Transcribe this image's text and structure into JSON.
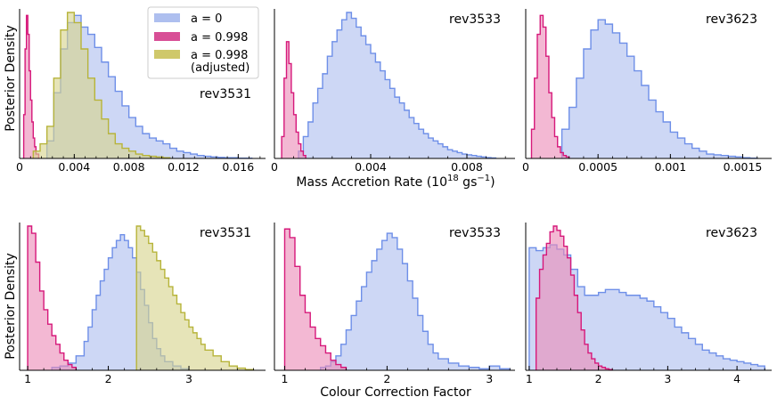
{
  "figure": {
    "ylabel": "Posterior Density",
    "row1_xlabel": "Mass Accretion Rate (10",
    "row1_xlabel_sup": "18",
    "row1_xlabel_mid": " gs",
    "row1_xlabel_sup2": "−1",
    "row1_xlabel_end": ")",
    "row2_xlabel": "Colour Correction Factor"
  },
  "colors": {
    "a0_fill": "#aebfef",
    "a0_line": "#6e8fe8",
    "a998_fill": "#ec8db8",
    "a998_line": "#d6187a",
    "adj_fill": "#d6d48d",
    "adj_line": "#b7b43a"
  },
  "legend": [
    {
      "label": "a = 0",
      "color": "#aebfef"
    },
    {
      "label": "a = 0.998",
      "color": "#d84f96"
    },
    {
      "label": "a = 0.998",
      "label2": "(adjusted)",
      "color": "#cfc86a"
    }
  ],
  "chart_data": [
    {
      "type": "histogram",
      "title": "rev3531",
      "row": 1,
      "col": 1,
      "xlim": [
        0,
        0.018
      ],
      "xticks": [
        0,
        0.004,
        0.008,
        0.012,
        0.016
      ],
      "xtick_labels": [
        "0",
        "0.004",
        "0.008",
        "0.012",
        "0.016"
      ],
      "series": [
        {
          "name": "a = 0",
          "edges": [
            0.002,
            0.0025,
            0.003,
            0.0035,
            0.004,
            0.0045,
            0.005,
            0.0055,
            0.006,
            0.0065,
            0.007,
            0.0075,
            0.008,
            0.0085,
            0.009,
            0.0095,
            0.01,
            0.0105,
            0.011,
            0.0115,
            0.012,
            0.0125,
            0.013,
            0.0135,
            0.014,
            0.0145,
            0.015,
            0.016,
            0.017
          ],
          "counts": [
            0.12,
            0.45,
            0.75,
            0.93,
            0.98,
            0.9,
            0.85,
            0.76,
            0.66,
            0.56,
            0.46,
            0.36,
            0.28,
            0.22,
            0.17,
            0.14,
            0.12,
            0.1,
            0.07,
            0.05,
            0.04,
            0.03,
            0.02,
            0.015,
            0.01,
            0.007,
            0.005,
            0.002
          ]
        },
        {
          "name": "a = 0.998",
          "edges": [
            0.0003,
            0.0004,
            0.0005,
            0.0006,
            0.0007,
            0.0008,
            0.0009,
            0.001,
            0.0011,
            0.0012,
            0.0014
          ],
          "counts": [
            0.3,
            0.75,
            0.98,
            0.85,
            0.6,
            0.4,
            0.25,
            0.14,
            0.08,
            0.03
          ]
        },
        {
          "name": "a = 0.998 (adjusted)",
          "edges": [
            0.001,
            0.0015,
            0.002,
            0.0025,
            0.003,
            0.0035,
            0.004,
            0.0045,
            0.005,
            0.0055,
            0.006,
            0.0065,
            0.007,
            0.0075,
            0.008,
            0.0085,
            0.009,
            0.0095,
            0.01,
            0.0105,
            0.011
          ],
          "counts": [
            0.05,
            0.1,
            0.22,
            0.55,
            0.88,
            1.0,
            0.93,
            0.75,
            0.55,
            0.4,
            0.27,
            0.17,
            0.1,
            0.07,
            0.05,
            0.03,
            0.02,
            0.015,
            0.01,
            0.005
          ]
        }
      ]
    },
    {
      "type": "histogram",
      "title": "rev3533",
      "row": 1,
      "col": 2,
      "xlim": [
        0,
        0.01
      ],
      "xticks": [
        0,
        0.004,
        0.008
      ],
      "xtick_labels": [
        "0",
        "0.004",
        "0.008"
      ],
      "series": [
        {
          "name": "a = 0",
          "edges": [
            0.001,
            0.0012,
            0.0014,
            0.0016,
            0.0018,
            0.002,
            0.0022,
            0.0024,
            0.0026,
            0.0028,
            0.003,
            0.0032,
            0.0034,
            0.0036,
            0.0038,
            0.004,
            0.0042,
            0.0044,
            0.0046,
            0.0048,
            0.005,
            0.0052,
            0.0054,
            0.0056,
            0.0058,
            0.006,
            0.0062,
            0.0064,
            0.0066,
            0.0068,
            0.007,
            0.0072,
            0.0074,
            0.0076,
            0.0078,
            0.008,
            0.0082,
            0.0084,
            0.0086,
            0.0088,
            0.009,
            0.0092
          ],
          "counts": [
            0.05,
            0.15,
            0.25,
            0.38,
            0.48,
            0.58,
            0.7,
            0.8,
            0.88,
            0.95,
            1.0,
            0.96,
            0.9,
            0.84,
            0.78,
            0.72,
            0.66,
            0.6,
            0.54,
            0.48,
            0.42,
            0.38,
            0.33,
            0.28,
            0.24,
            0.2,
            0.17,
            0.14,
            0.12,
            0.1,
            0.08,
            0.06,
            0.05,
            0.04,
            0.03,
            0.025,
            0.02,
            0.015,
            0.01,
            0.006,
            0.003
          ]
        },
        {
          "name": "a = 0.998",
          "edges": [
            0.0003,
            0.0004,
            0.0005,
            0.0006,
            0.0007,
            0.0008,
            0.0009,
            0.001,
            0.0011,
            0.0012,
            0.0013
          ],
          "counts": [
            0.15,
            0.55,
            0.8,
            0.65,
            0.45,
            0.3,
            0.18,
            0.1,
            0.05,
            0.02
          ]
        }
      ]
    },
    {
      "type": "histogram",
      "title": "rev3623",
      "row": 1,
      "col": 3,
      "xlim": [
        0,
        0.0017
      ],
      "xticks": [
        0,
        0.0005,
        0.001,
        0.0015
      ],
      "xtick_labels": [
        "0",
        "0.0005",
        "0.001",
        "0.0015"
      ],
      "series": [
        {
          "name": "a = 0",
          "edges": [
            0.00025,
            0.0003,
            0.00035,
            0.0004,
            0.00045,
            0.0005,
            0.00055,
            0.0006,
            0.00065,
            0.0007,
            0.00075,
            0.0008,
            0.00085,
            0.0009,
            0.00095,
            0.001,
            0.00105,
            0.0011,
            0.00115,
            0.0012,
            0.00125,
            0.0013,
            0.00135,
            0.0014,
            0.00145,
            0.0015,
            0.00155,
            0.0016
          ],
          "counts": [
            0.2,
            0.35,
            0.55,
            0.75,
            0.88,
            0.95,
            0.92,
            0.86,
            0.79,
            0.7,
            0.6,
            0.5,
            0.4,
            0.32,
            0.25,
            0.18,
            0.14,
            0.1,
            0.07,
            0.05,
            0.03,
            0.025,
            0.02,
            0.015,
            0.01,
            0.005,
            0.002
          ]
        },
        {
          "name": "a = 0.998",
          "edges": [
            4e-05,
            6e-05,
            8e-05,
            0.0001,
            0.00012,
            0.00014,
            0.00016,
            0.00018,
            0.0002,
            0.00022,
            0.00024,
            0.00026,
            0.00028,
            0.0003
          ],
          "counts": [
            0.2,
            0.55,
            0.85,
            0.98,
            0.9,
            0.7,
            0.45,
            0.28,
            0.15,
            0.08,
            0.04,
            0.02,
            0.01
          ]
        }
      ]
    },
    {
      "type": "histogram",
      "title": "rev3531",
      "row": 2,
      "col": 1,
      "xlim": [
        0.9,
        3.95
      ],
      "xticks": [
        1,
        2,
        3
      ],
      "xtick_labels": [
        "1",
        "2",
        "3"
      ],
      "series": [
        {
          "name": "a = 0",
          "edges": [
            1.3,
            1.4,
            1.5,
            1.6,
            1.7,
            1.75,
            1.8,
            1.85,
            1.9,
            1.95,
            2.0,
            2.05,
            2.1,
            2.15,
            2.2,
            2.25,
            2.3,
            2.35,
            2.4,
            2.45,
            2.5,
            2.55,
            2.6,
            2.65,
            2.7,
            2.8,
            2.9,
            3.0
          ],
          "counts": [
            0.02,
            0.03,
            0.05,
            0.1,
            0.2,
            0.3,
            0.42,
            0.52,
            0.62,
            0.7,
            0.78,
            0.85,
            0.9,
            0.94,
            0.9,
            0.85,
            0.78,
            0.68,
            0.56,
            0.45,
            0.33,
            0.22,
            0.15,
            0.1,
            0.06,
            0.03,
            0.01
          ]
        },
        {
          "name": "a = 0.998",
          "edges": [
            1.0,
            1.05,
            1.1,
            1.15,
            1.2,
            1.25,
            1.3,
            1.35,
            1.4,
            1.45,
            1.5,
            1.55,
            1.6
          ],
          "counts": [
            1.0,
            0.95,
            0.75,
            0.55,
            0.42,
            0.32,
            0.24,
            0.18,
            0.12,
            0.07,
            0.04,
            0.02
          ]
        },
        {
          "name": "a = 0.998 (adjusted)",
          "edges": [
            2.35,
            2.4,
            2.45,
            2.5,
            2.55,
            2.6,
            2.65,
            2.7,
            2.75,
            2.8,
            2.85,
            2.9,
            2.95,
            3.0,
            3.05,
            3.1,
            3.15,
            3.2,
            3.3,
            3.4,
            3.5,
            3.6,
            3.7,
            3.8
          ],
          "counts": [
            1.0,
            0.97,
            0.93,
            0.88,
            0.82,
            0.76,
            0.7,
            0.64,
            0.58,
            0.52,
            0.46,
            0.4,
            0.35,
            0.3,
            0.26,
            0.22,
            0.18,
            0.14,
            0.1,
            0.06,
            0.03,
            0.015,
            0.005
          ]
        }
      ]
    },
    {
      "type": "histogram",
      "title": "rev3533",
      "row": 2,
      "col": 2,
      "xlim": [
        0.9,
        3.25
      ],
      "xticks": [
        1,
        2,
        3
      ],
      "xtick_labels": [
        "1",
        "2",
        "3"
      ],
      "series": [
        {
          "name": "a = 0",
          "edges": [
            1.35,
            1.4,
            1.45,
            1.5,
            1.55,
            1.6,
            1.65,
            1.7,
            1.75,
            1.8,
            1.85,
            1.9,
            1.95,
            2.0,
            2.05,
            2.1,
            2.15,
            2.2,
            2.25,
            2.3,
            2.35,
            2.4,
            2.45,
            2.5,
            2.6,
            2.7,
            2.8,
            2.9,
            3.0,
            3.1,
            3.2
          ],
          "counts": [
            0.02,
            0.03,
            0.06,
            0.1,
            0.18,
            0.28,
            0.38,
            0.48,
            0.58,
            0.68,
            0.76,
            0.84,
            0.9,
            0.95,
            0.92,
            0.84,
            0.74,
            0.62,
            0.5,
            0.38,
            0.27,
            0.18,
            0.12,
            0.08,
            0.05,
            0.03,
            0.02,
            0.01,
            0.03,
            0.01
          ]
        },
        {
          "name": "a = 0.998",
          "edges": [
            1.0,
            1.05,
            1.1,
            1.15,
            1.2,
            1.25,
            1.3,
            1.35,
            1.4,
            1.45,
            1.5,
            1.55,
            1.6
          ],
          "counts": [
            0.98,
            0.92,
            0.72,
            0.52,
            0.4,
            0.3,
            0.22,
            0.17,
            0.12,
            0.07,
            0.04,
            0.02
          ]
        }
      ]
    },
    {
      "type": "histogram",
      "title": "rev3623",
      "row": 2,
      "col": 3,
      "xlim": [
        0.95,
        4.5
      ],
      "xticks": [
        1,
        2,
        3,
        4
      ],
      "xtick_labels": [
        "1",
        "2",
        "3",
        "4"
      ],
      "series": [
        {
          "name": "a = 0",
          "edges": [
            1.0,
            1.1,
            1.2,
            1.3,
            1.4,
            1.5,
            1.6,
            1.7,
            1.8,
            1.9,
            2.0,
            2.1,
            2.2,
            2.3,
            2.4,
            2.5,
            2.6,
            2.7,
            2.8,
            2.9,
            3.0,
            3.1,
            3.2,
            3.3,
            3.4,
            3.5,
            3.6,
            3.7,
            3.8,
            3.9,
            4.0,
            4.1,
            4.2,
            4.3,
            4.4
          ],
          "counts": [
            0.85,
            0.83,
            0.85,
            0.87,
            0.84,
            0.8,
            0.7,
            0.58,
            0.52,
            0.52,
            0.54,
            0.56,
            0.56,
            0.54,
            0.52,
            0.52,
            0.5,
            0.48,
            0.44,
            0.4,
            0.36,
            0.3,
            0.26,
            0.22,
            0.18,
            0.14,
            0.12,
            0.1,
            0.08,
            0.07,
            0.06,
            0.05,
            0.04,
            0.03
          ]
        },
        {
          "name": "a = 0.998",
          "edges": [
            1.1,
            1.15,
            1.2,
            1.25,
            1.3,
            1.35,
            1.4,
            1.45,
            1.5,
            1.55,
            1.6,
            1.65,
            1.7,
            1.75,
            1.8,
            1.85,
            1.9,
            1.95,
            2.0,
            2.05,
            2.1,
            2.15,
            2.2
          ],
          "counts": [
            0.5,
            0.7,
            0.8,
            0.88,
            0.96,
            1.0,
            0.97,
            0.93,
            0.86,
            0.78,
            0.66,
            0.52,
            0.4,
            0.28,
            0.18,
            0.12,
            0.08,
            0.05,
            0.03,
            0.02,
            0.01,
            0.005
          ]
        }
      ]
    }
  ]
}
